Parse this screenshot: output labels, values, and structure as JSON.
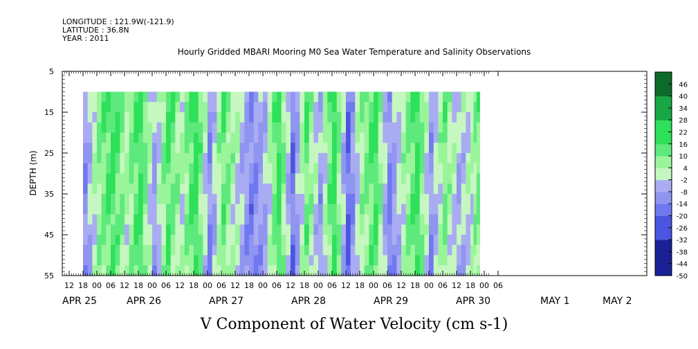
{
  "header": {
    "longitude": "LONGITUDE : 121.9W(-121.9)",
    "latitude": "LATITUDE : 36.8N",
    "year": "YEAR : 2011"
  },
  "chart_data": {
    "type": "heatmap",
    "title": "Hourly Gridded MBARI Mooring M0 Sea Water Temperature and Salinity Observations",
    "ylabel": "DEPTH (m)",
    "xlabel": "V Component of Water Velocity (cm s-1)",
    "y_ticks": [
      "5",
      "15",
      "25",
      "35",
      "45",
      "55"
    ],
    "ylim": [
      55,
      5
    ],
    "hour_ticks": [
      "12",
      "18",
      "00",
      "06",
      "12",
      "18",
      "00",
      "06",
      "12",
      "18",
      "00",
      "06",
      "12",
      "18",
      "00",
      "06",
      "12",
      "18",
      "00",
      "06",
      "12",
      "18",
      "00",
      "06",
      "12",
      "18",
      "00",
      "06",
      "12",
      "18",
      "00",
      "06"
    ],
    "date_labels": [
      "APR 25",
      "APR 26",
      "APR 27",
      "APR 28",
      "APR 29",
      "APR 30",
      "MAY  1",
      "MAY  2"
    ],
    "colorbar_labels": [
      "46",
      "40",
      "34",
      "28",
      "22",
      "16",
      "10",
      "4",
      "-2",
      "-8",
      "-14",
      "-20",
      "-26",
      "-32",
      "-38",
      "-44",
      "-50"
    ],
    "colorbar_range": [
      -50,
      52
    ],
    "data_depth_range": [
      10,
      55
    ],
    "time_columns_hours_from_apr25_00": [
      18,
      24,
      30,
      36,
      42,
      48,
      54,
      60,
      66,
      72,
      78,
      84,
      90,
      96,
      102,
      108,
      114,
      120,
      126,
      132,
      138,
      144,
      150,
      156,
      162,
      168,
      174,
      180,
      186,
      190
    ],
    "v_velocity_pattern": [
      -8,
      10,
      18,
      6,
      20,
      -6,
      16,
      4,
      22,
      -10,
      14,
      2,
      -12,
      -4,
      20,
      -14,
      14,
      -6,
      22,
      -16,
      8,
      18,
      -12,
      6,
      20,
      -8,
      12,
      -4,
      4,
      16
    ],
    "colors": {
      "positive": "#2ee05a",
      "light_positive": "#9af59a",
      "negative": "#a9acf3",
      "deep_negative": "#6f78f0"
    }
  }
}
